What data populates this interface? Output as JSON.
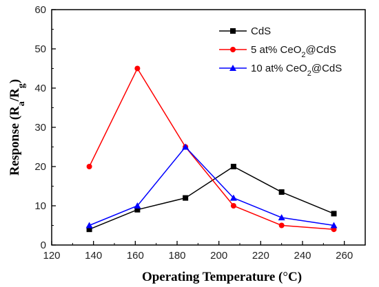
{
  "chart_data": {
    "type": "line",
    "xlabel": "Operating Temperature (°C)",
    "ylabel": "Response (Ra/Rg)",
    "xlim": [
      120,
      270
    ],
    "ylim": [
      0,
      60
    ],
    "xticks": [
      "120",
      "140",
      "160",
      "180",
      "200",
      "220",
      "240",
      "260"
    ],
    "yticks": [
      "0",
      "10",
      "20",
      "30",
      "40",
      "50",
      "60"
    ],
    "grid": false,
    "legend_position": "top-right",
    "series": [
      {
        "name": "CdS",
        "label_parts": {
          "pre": "CdS",
          "sub": "",
          "post": ""
        },
        "color": "#000000",
        "marker": "square",
        "x": [
          138,
          161,
          184,
          207,
          230,
          255
        ],
        "y": [
          4,
          9,
          12,
          20,
          13.5,
          8
        ]
      },
      {
        "name": "5 at% CeO2@CdS",
        "label_parts": {
          "pre": "5 at% CeO",
          "sub": "2",
          "post": "@CdS"
        },
        "color": "#ff0000",
        "marker": "circle",
        "x": [
          138,
          161,
          184,
          207,
          230,
          255
        ],
        "y": [
          20,
          45,
          25,
          10,
          5,
          4
        ]
      },
      {
        "name": "10 at% CeO2@CdS",
        "label_parts": {
          "pre": "10 at% CeO",
          "sub": "2",
          "post": "@CdS"
        },
        "color": "#0000ff",
        "marker": "triangle",
        "x": [
          138,
          161,
          184,
          207,
          230,
          255
        ],
        "y": [
          5,
          10,
          25,
          12,
          7,
          5
        ]
      }
    ]
  }
}
